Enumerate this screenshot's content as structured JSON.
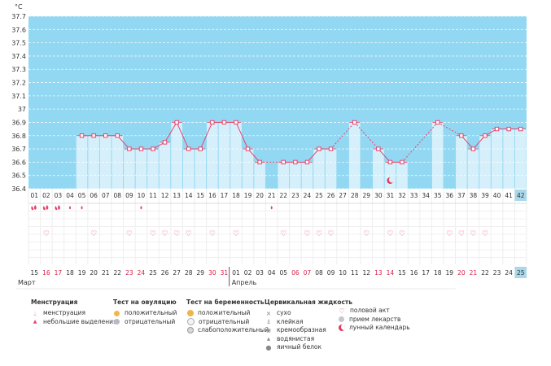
{
  "colors": {
    "sky": "#93d8f3",
    "day_bar": "#d6f0fb",
    "line": "#e8436b",
    "weekend": "#d9214a",
    "highlight": "#a8d8ea"
  },
  "unit_label": "°C",
  "months": [
    "Март",
    "Апрель"
  ],
  "chart_data": {
    "type": "line",
    "title": "",
    "ylabel": "°C",
    "ylim": [
      36.4,
      37.7
    ],
    "yticks": [
      "37.7",
      "37.6",
      "37.5",
      "37.4",
      "37.3",
      "37.2",
      "37.1",
      "37",
      "36.9",
      "36.8",
      "36.7",
      "36.6",
      "36.5",
      "36.4"
    ],
    "cycle_days": [
      "01",
      "02",
      "03",
      "04",
      "05",
      "06",
      "07",
      "08",
      "09",
      "10",
      "11",
      "12",
      "13",
      "14",
      "15",
      "16",
      "17",
      "18",
      "19",
      "20",
      "21",
      "22",
      "23",
      "24",
      "25",
      "26",
      "27",
      "28",
      "29",
      "30",
      "31",
      "32",
      "33",
      "34",
      "35",
      "36",
      "37",
      "38",
      "39",
      "40",
      "41",
      "42"
    ],
    "dates": [
      "15",
      "16",
      "17",
      "18",
      "19",
      "20",
      "21",
      "22",
      "23",
      "24",
      "25",
      "26",
      "27",
      "28",
      "29",
      "30",
      "31",
      "01",
      "02",
      "03",
      "04",
      "05",
      "06",
      "07",
      "08",
      "09",
      "10",
      "11",
      "12",
      "13",
      "14",
      "15",
      "16",
      "17",
      "18",
      "19",
      "20",
      "21",
      "22",
      "23",
      "24",
      "25"
    ],
    "date_weekend": [
      false,
      true,
      true,
      false,
      false,
      false,
      false,
      false,
      true,
      true,
      false,
      false,
      false,
      false,
      false,
      true,
      true,
      false,
      false,
      false,
      false,
      false,
      true,
      true,
      false,
      false,
      false,
      false,
      false,
      true,
      true,
      false,
      false,
      false,
      false,
      false,
      true,
      true,
      false,
      false,
      false,
      false
    ],
    "temperature": [
      null,
      null,
      null,
      null,
      36.8,
      36.8,
      36.8,
      36.8,
      36.7,
      36.7,
      36.7,
      36.75,
      36.9,
      36.7,
      36.7,
      36.9,
      36.9,
      36.9,
      36.7,
      36.6,
      null,
      36.6,
      36.6,
      36.6,
      36.7,
      36.7,
      null,
      36.9,
      null,
      36.7,
      36.6,
      36.6,
      null,
      null,
      36.9,
      null,
      36.8,
      36.7,
      36.8,
      36.85,
      36.85,
      36.85
    ],
    "menstruation": [
      "heavy",
      "heavy",
      "heavy",
      "light",
      "light",
      null,
      null,
      null,
      null,
      "light",
      null,
      null,
      null,
      null,
      null,
      null,
      null,
      null,
      null,
      null,
      "light",
      null,
      null,
      null,
      null,
      null,
      null,
      null,
      null,
      null,
      null,
      null,
      null,
      null,
      null,
      null,
      null,
      null,
      null,
      null,
      null,
      null
    ],
    "intercourse": [
      false,
      true,
      false,
      false,
      false,
      true,
      false,
      false,
      true,
      false,
      true,
      true,
      true,
      true,
      false,
      true,
      false,
      true,
      false,
      false,
      false,
      true,
      false,
      true,
      true,
      true,
      false,
      false,
      true,
      false,
      true,
      true,
      false,
      false,
      false,
      true,
      true,
      true,
      true,
      false,
      false,
      false
    ],
    "lunar_day": 31,
    "today_index": 41
  },
  "legend": {
    "menstruation": {
      "heading": "Менструация",
      "items": [
        {
          "icon": "heavy-drop-icon",
          "label": "менструация"
        },
        {
          "icon": "small-drop-icon",
          "label": "небольшие выделения"
        }
      ]
    },
    "ovulation_test": {
      "heading": "Тест на овуляцию",
      "items": [
        {
          "icon": "sun-positive-icon",
          "label": "положительный"
        },
        {
          "icon": "sun-negative-icon",
          "label": "отрицательный"
        }
      ]
    },
    "pregnancy_test": {
      "heading": "Тест на беременность",
      "items": [
        {
          "icon": "pregnancy-positive-icon",
          "label": "положительный"
        },
        {
          "icon": "pregnancy-negative-icon",
          "label": "отрицательный"
        },
        {
          "icon": "pregnancy-weak-icon",
          "label": "слабоположительный"
        }
      ]
    },
    "cervical_fluid": {
      "heading": "Цервикальная жидкость",
      "items": [
        {
          "icon": "dry-icon",
          "label": "сухо"
        },
        {
          "icon": "sticky-icon",
          "label": "клейкая"
        },
        {
          "icon": "creamy-icon",
          "label": "кремообразная"
        },
        {
          "icon": "watery-icon",
          "label": "водянистая"
        },
        {
          "icon": "eggwhite-icon",
          "label": "яичный белок"
        }
      ]
    },
    "other": {
      "items": [
        {
          "icon": "heart-icon",
          "label": "половой акт"
        },
        {
          "icon": "pill-icon",
          "label": "прием лекарств"
        },
        {
          "icon": "moon-icon",
          "label": "лунный календарь"
        }
      ]
    }
  }
}
